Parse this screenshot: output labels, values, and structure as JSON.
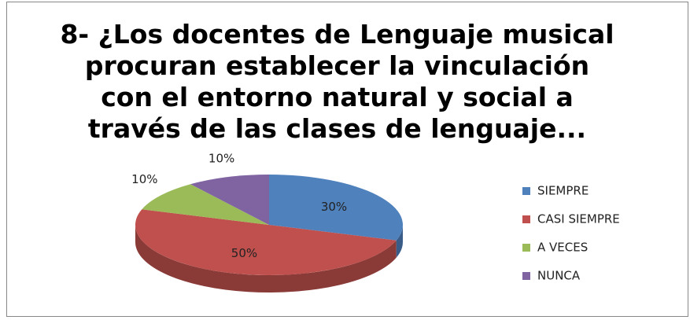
{
  "chart_data": {
    "type": "pie3d",
    "title": "8- ¿Los docentes de Lenguaje musical\nprocuran establecer la vinculación\ncon el entorno natural y social a\ntravés de las clases de lenguaje...",
    "categories": [
      "SIEMPRE",
      "CASI SIEMPRE",
      "A VECES",
      "NUNCA"
    ],
    "values": [
      30,
      50,
      10,
      10
    ],
    "value_labels": [
      "30%",
      "50%",
      "10%",
      "10%"
    ],
    "colors": [
      "#4f81bd",
      "#c0504d",
      "#9bbb59",
      "#8064a2"
    ],
    "legend": "right"
  }
}
